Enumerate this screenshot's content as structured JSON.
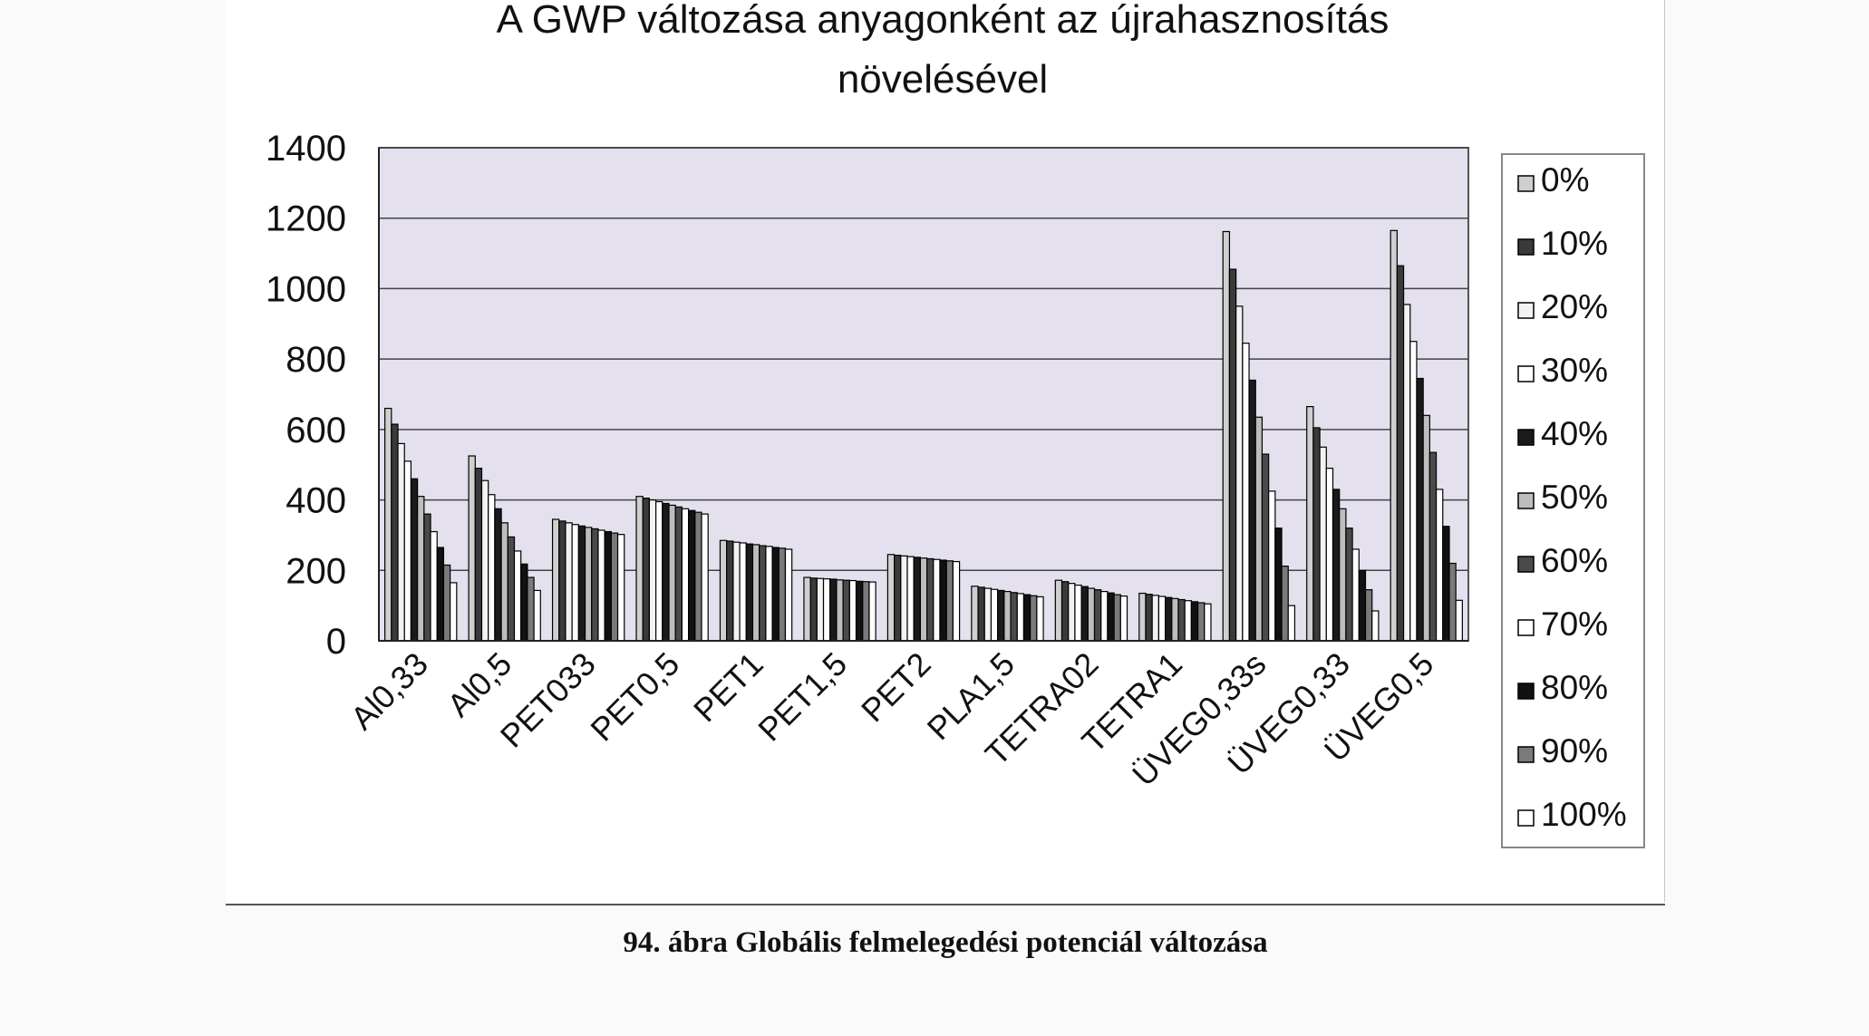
{
  "caption": "94. ábra Globális felmelegedési potenciál változása",
  "chart_data": {
    "type": "bar",
    "title_lines": [
      "A GWP változása anyagonként az újrahasznosítás",
      "növelésével"
    ],
    "xlabel": "",
    "ylabel": "",
    "ylim": [
      0,
      1400
    ],
    "yticks": [
      "0",
      "200",
      "400",
      "600",
      "800",
      "1000",
      "1200",
      "1400"
    ],
    "grid": true,
    "legend_position": "right",
    "plot_background": "#e4e0ee",
    "categories": [
      "Al0,33",
      "Al0,5",
      "PET033",
      "PET0,5",
      "PET1",
      "PET1,5",
      "PET2",
      "PLA1,5",
      "TETRA02",
      "TETRA1",
      "ÜVEG0,33s",
      "ÜVEG0,33",
      "ÜVEG0,5"
    ],
    "series": [
      {
        "name": "0%",
        "color": "#cfcfcf",
        "values": [
          660,
          525,
          345,
          410,
          285,
          180,
          245,
          155,
          172,
          135,
          1162,
          665,
          1165
        ]
      },
      {
        "name": "10%",
        "color": "#3a3a3a",
        "values": [
          615,
          490,
          340,
          405,
          283,
          178,
          243,
          152,
          168,
          132,
          1055,
          605,
          1065
        ]
      },
      {
        "name": "20%",
        "color": "#f2f2f2",
        "values": [
          560,
          455,
          335,
          400,
          280,
          177,
          241,
          149,
          163,
          129,
          950,
          550,
          955
        ]
      },
      {
        "name": "30%",
        "color": "#ffffff",
        "values": [
          510,
          415,
          330,
          395,
          278,
          176,
          239,
          146,
          158,
          126,
          845,
          490,
          850
        ]
      },
      {
        "name": "40%",
        "color": "#1a1a1a",
        "values": [
          460,
          375,
          326,
          390,
          275,
          175,
          237,
          143,
          154,
          123,
          740,
          430,
          745
        ]
      },
      {
        "name": "50%",
        "color": "#bdbdbd",
        "values": [
          410,
          335,
          322,
          385,
          273,
          173,
          235,
          140,
          149,
          120,
          635,
          375,
          640
        ]
      },
      {
        "name": "60%",
        "color": "#4a4a4a",
        "values": [
          360,
          295,
          318,
          380,
          270,
          172,
          233,
          137,
          145,
          117,
          530,
          320,
          535
        ]
      },
      {
        "name": "70%",
        "color": "#ffffff",
        "values": [
          310,
          255,
          314,
          375,
          268,
          171,
          231,
          134,
          140,
          114,
          425,
          260,
          430
        ]
      },
      {
        "name": "80%",
        "color": "#111111",
        "values": [
          265,
          218,
          310,
          370,
          265,
          169,
          229,
          131,
          136,
          111,
          320,
          200,
          325
        ]
      },
      {
        "name": "90%",
        "color": "#7a7a7a",
        "values": [
          215,
          180,
          306,
          365,
          263,
          168,
          227,
          128,
          131,
          108,
          212,
          145,
          220
        ]
      },
      {
        "name": "100%",
        "color": "#ffffff",
        "values": [
          165,
          143,
          302,
          360,
          260,
          167,
          225,
          125,
          127,
          105,
          100,
          85,
          115
        ]
      }
    ]
  }
}
